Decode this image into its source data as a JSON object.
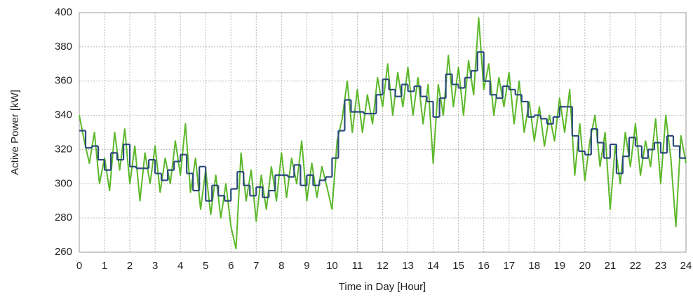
{
  "chart_data": {
    "type": "line",
    "xlabel": "Time in Day [Hour]",
    "ylabel": "Active Power [kW]",
    "xlim": [
      0,
      24
    ],
    "ylim": [
      260,
      400
    ],
    "xticks": [
      0,
      1,
      2,
      3,
      4,
      5,
      6,
      7,
      8,
      9,
      10,
      11,
      12,
      13,
      14,
      15,
      16,
      17,
      18,
      19,
      20,
      21,
      22,
      23,
      24
    ],
    "yticks": [
      260,
      280,
      300,
      320,
      340,
      360,
      380,
      400
    ],
    "grid": true,
    "series": [
      {
        "color": "#5cb82a",
        "style": "line",
        "x": [
          0,
          0.2,
          0.4,
          0.6,
          0.8,
          1,
          1.2,
          1.4,
          1.6,
          1.8,
          2,
          2.2,
          2.4,
          2.6,
          2.8,
          3,
          3.2,
          3.4,
          3.6,
          3.8,
          4,
          4.2,
          4.4,
          4.6,
          4.8,
          5,
          5.2,
          5.4,
          5.6,
          5.8,
          6,
          6.2,
          6.4,
          6.6,
          6.8,
          7,
          7.2,
          7.4,
          7.6,
          7.8,
          8,
          8.2,
          8.4,
          8.6,
          8.8,
          9,
          9.2,
          9.4,
          9.6,
          9.8,
          10,
          10.2,
          10.4,
          10.6,
          10.8,
          11,
          11.2,
          11.4,
          11.6,
          11.8,
          12,
          12.2,
          12.4,
          12.6,
          12.8,
          13,
          13.2,
          13.4,
          13.6,
          13.8,
          14,
          14.2,
          14.4,
          14.6,
          14.8,
          15,
          15.2,
          15.4,
          15.6,
          15.8,
          16,
          16.2,
          16.4,
          16.6,
          16.8,
          17,
          17.2,
          17.4,
          17.6,
          17.8,
          18,
          18.2,
          18.4,
          18.6,
          18.8,
          19,
          19.2,
          19.4,
          19.6,
          19.8,
          20,
          20.2,
          20.4,
          20.6,
          20.8,
          21,
          21.2,
          21.4,
          21.6,
          21.8,
          22,
          22.2,
          22.4,
          22.6,
          22.8,
          23,
          23.2,
          23.4,
          23.6,
          23.8,
          24
        ],
        "values": [
          340,
          325,
          312,
          330,
          300,
          315,
          296,
          330,
          308,
          332,
          300,
          322,
          290,
          318,
          300,
          322,
          295,
          315,
          300,
          325,
          305,
          335,
          295,
          315,
          285,
          308,
          282,
          305,
          280,
          300,
          275,
          262,
          318,
          290,
          308,
          278,
          305,
          285,
          310,
          290,
          318,
          292,
          315,
          300,
          325,
          290,
          312,
          292,
          310,
          298,
          285,
          325,
          338,
          360,
          330,
          355,
          330,
          352,
          335,
          362,
          345,
          370,
          340,
          365,
          345,
          368,
          340,
          362,
          335,
          358,
          312,
          358,
          340,
          375,
          345,
          368,
          340,
          372,
          352,
          397,
          355,
          370,
          340,
          362,
          345,
          365,
          335,
          360,
          330,
          348,
          325,
          345,
          322,
          340,
          325,
          350,
          330,
          355,
          305,
          335,
          302,
          325,
          340,
          310,
          330,
          285,
          322,
          300,
          330,
          310,
          335,
          305,
          325,
          310,
          338,
          300,
          340,
          315,
          275,
          328,
          312
        ]
      },
      {
        "color": "#2a4a7a",
        "style": "step",
        "x": [
          0,
          0.25,
          0.5,
          0.75,
          1,
          1.25,
          1.5,
          1.75,
          2,
          2.25,
          2.5,
          2.75,
          3,
          3.25,
          3.5,
          3.75,
          4,
          4.25,
          4.5,
          4.75,
          5,
          5.25,
          5.5,
          5.75,
          6,
          6.25,
          6.5,
          6.75,
          7,
          7.25,
          7.5,
          7.75,
          8,
          8.25,
          8.5,
          8.75,
          9,
          9.25,
          9.5,
          9.75,
          10,
          10.25,
          10.5,
          10.75,
          11,
          11.25,
          11.5,
          11.75,
          12,
          12.25,
          12.5,
          12.75,
          13,
          13.25,
          13.5,
          13.75,
          14,
          14.25,
          14.5,
          14.75,
          15,
          15.25,
          15.5,
          15.75,
          16,
          16.25,
          16.5,
          16.75,
          17,
          17.25,
          17.5,
          17.75,
          18,
          18.25,
          18.5,
          18.75,
          19,
          19.25,
          19.5,
          19.75,
          20,
          20.25,
          20.5,
          20.75,
          21,
          21.25,
          21.5,
          21.75,
          22,
          22.25,
          22.5,
          22.75,
          23,
          23.25,
          23.5,
          23.75
        ],
        "values": [
          331,
          321,
          322,
          314,
          308,
          318,
          314,
          323,
          310,
          309,
          309,
          314,
          306,
          302,
          308,
          313,
          317,
          306,
          296,
          310,
          290,
          299,
          293,
          290,
          297,
          307,
          299,
          293,
          298,
          292,
          296,
          305,
          305,
          304,
          311,
          299,
          305,
          299,
          302,
          304,
          315,
          331,
          349,
          342,
          342,
          341,
          341,
          352,
          361,
          355,
          351,
          358,
          354,
          357,
          351,
          348,
          339,
          350,
          364,
          358,
          356,
          362,
          366,
          377,
          360,
          352,
          350,
          357,
          355,
          352,
          348,
          339,
          340,
          338,
          335,
          339,
          345,
          345,
          328,
          319,
          317,
          332,
          324,
          315,
          323,
          306,
          316,
          327,
          322,
          315,
          320,
          324,
          318,
          328,
          322,
          315
        ]
      }
    ]
  }
}
